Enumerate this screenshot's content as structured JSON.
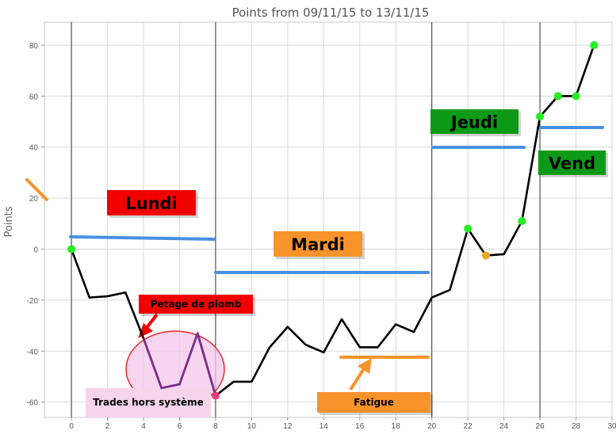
{
  "chart_data": {
    "type": "line",
    "title": "Points from 09/11/15 to 13/11/15",
    "xlabel": "",
    "ylabel": "Points",
    "xlim": [
      -1.5,
      30
    ],
    "ylim": [
      -66,
      89
    ],
    "x_ticks": [
      0,
      2,
      4,
      6,
      8,
      10,
      12,
      14,
      16,
      18,
      20,
      22,
      24,
      26,
      28,
      30
    ],
    "y_ticks": [
      -60,
      -40,
      -20,
      0,
      20,
      40,
      60,
      80
    ],
    "grid": true,
    "series": [
      {
        "color": "#000000",
        "x": [
          0,
          1,
          2,
          3,
          4,
          5,
          6,
          7,
          8,
          9,
          10,
          11,
          12,
          13,
          14,
          15,
          16,
          17,
          18,
          19,
          20,
          21,
          22,
          23,
          24,
          25,
          26,
          27,
          28,
          29
        ],
        "y": [
          0,
          -19,
          -18.5,
          -17,
          -35,
          -54.5,
          -53,
          -33,
          -57.5,
          -52,
          -52,
          -38.5,
          -30.5,
          -37.5,
          -40.5,
          -27.5,
          -38.5,
          -38.5,
          -29.5,
          -32.5,
          -19,
          -16,
          8,
          -2.5,
          -2,
          11,
          52,
          60,
          60,
          80
        ]
      }
    ],
    "purple_segment": {
      "color": "#7b2d8e",
      "x": [
        4,
        5,
        6,
        7,
        8
      ],
      "y": [
        -35,
        -54.5,
        -53,
        -33,
        -57.5
      ]
    },
    "markers": [
      {
        "x": 0,
        "y": 0,
        "color": "#22ee22"
      },
      {
        "x": 8,
        "y": -57.5,
        "color": "#e8407a"
      },
      {
        "x": 22,
        "y": 8,
        "color": "#22ee22"
      },
      {
        "x": 23,
        "y": -2.5,
        "color": "#f5a623"
      },
      {
        "x": 25,
        "y": 11,
        "color": "#22ee22"
      },
      {
        "x": 26,
        "y": 52,
        "color": "#22ee22"
      },
      {
        "x": 27,
        "y": 60,
        "color": "#22ee22"
      },
      {
        "x": 28,
        "y": 60,
        "color": "#22ee22"
      },
      {
        "x": 29,
        "y": 80,
        "color": "#22ee22"
      }
    ],
    "vertical_separators": [
      0,
      8,
      20,
      26
    ],
    "annotations": [
      {
        "text": "Lundi",
        "bg": "#f20000",
        "fg": "#000000"
      },
      {
        "text": "Mardi",
        "bg": "#f7932b",
        "fg": "#000000"
      },
      {
        "text": "Jeudi",
        "bg": "#0c9a17",
        "fg": "#000000"
      },
      {
        "text": "Vend",
        "bg": "#0c9a17",
        "fg": "#000000"
      },
      {
        "text": "Petage de plomb",
        "bg": "#f20000",
        "fg": "#000000"
      },
      {
        "text": "Trades hors système",
        "bg": "#f6d5ec",
        "fg": "#000000"
      },
      {
        "text": "Fatigue",
        "bg": "#f7932b",
        "fg": "#000000"
      }
    ]
  }
}
